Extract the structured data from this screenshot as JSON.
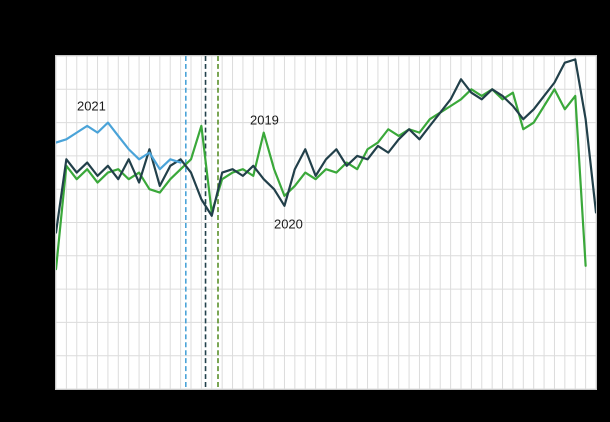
{
  "colors": {
    "background": "#000000",
    "plot_background": "#ffffff",
    "gridline": "#dcdcdc",
    "annotation_text": "#1a1a1a",
    "series_2019": "#3aa83a",
    "series_2020": "#22404a",
    "series_2021": "#4aa3d8",
    "reference_2019": "#5a8f29",
    "reference_2020": "#22404a",
    "reference_2021": "#4aa3d8"
  },
  "chart_data": {
    "type": "line",
    "title": "",
    "xlabel": "",
    "ylabel": "",
    "x_unit": "week",
    "x_range": [
      1,
      53
    ],
    "y_range_estimated": [
      0,
      100
    ],
    "grid": {
      "show": true,
      "vertical_step": 1,
      "horizontal_step": 10
    },
    "legend": "none (inline annotations)",
    "series": [
      {
        "name": "2019",
        "color": "#3aa83a",
        "x_start": 1,
        "values": [
          36,
          67,
          63,
          66,
          62,
          65,
          66,
          63,
          65,
          60,
          59,
          63,
          66,
          69,
          79,
          53,
          63,
          65,
          66,
          64,
          77,
          66,
          58,
          61,
          65,
          63,
          66,
          65,
          68,
          66,
          72,
          74,
          78,
          76,
          78,
          77,
          81,
          83,
          85,
          87,
          90,
          88,
          90,
          87,
          89,
          78,
          80,
          85,
          90,
          84,
          88,
          37
        ]
      },
      {
        "name": "2020",
        "color": "#22404a",
        "x_start": 1,
        "values": [
          47,
          69,
          65,
          68,
          64,
          67,
          63,
          69,
          62,
          72,
          61,
          67,
          69,
          65,
          57,
          52,
          65,
          66,
          64,
          67,
          63,
          60,
          55,
          66,
          72,
          64,
          69,
          72,
          67,
          70,
          69,
          73,
          71,
          75,
          78,
          75,
          79,
          83,
          87,
          93,
          89,
          87,
          90,
          88,
          85,
          81,
          84,
          88,
          92,
          98,
          99,
          81,
          53
        ]
      },
      {
        "name": "2021",
        "color": "#4aa3d8",
        "x_start": 1,
        "values": [
          74,
          75,
          77,
          79,
          77,
          80,
          76,
          72,
          69,
          71,
          66,
          69,
          68
        ]
      }
    ],
    "reference_lines": [
      {
        "series": "2021",
        "week": 13.5,
        "color": "#4aa3d8",
        "style": "dashed"
      },
      {
        "series": "2020",
        "week": 15.4,
        "color": "#22404a",
        "style": "dashed"
      },
      {
        "series": "2019",
        "week": 16.6,
        "color": "#5a8f29",
        "style": "dashed"
      }
    ],
    "annotations": [
      {
        "text": "2021",
        "week": 4.4,
        "value": 85
      },
      {
        "text": "2019",
        "week": 21.0,
        "value": 81
      },
      {
        "text": "2020",
        "week": 23.3,
        "value": 50
      }
    ]
  }
}
